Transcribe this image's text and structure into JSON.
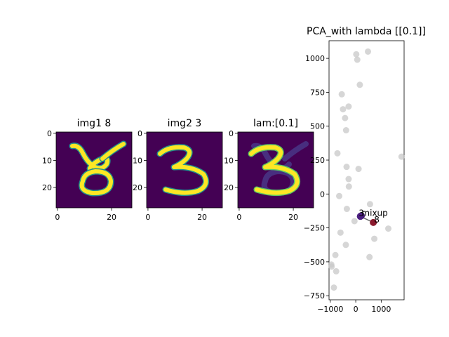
{
  "panels": [
    {
      "title": "img1 8",
      "x_ticks": [
        0,
        20
      ],
      "y_ticks": [
        0,
        10,
        20
      ],
      "colormap": [
        "#440154",
        "#3b528b",
        "#21918c",
        "#5ec962",
        "#fde725"
      ]
    },
    {
      "title": "img2 3",
      "x_ticks": [
        0,
        20
      ],
      "y_ticks": [
        0,
        10,
        20
      ],
      "colormap": [
        "#440154",
        "#3b528b",
        "#21918c",
        "#5ec962",
        "#fde725"
      ]
    },
    {
      "title": "lam:[0.1]",
      "x_ticks": [
        0,
        20
      ],
      "y_ticks": [
        0,
        10,
        20
      ],
      "colormap": [
        "#440154",
        "#3b528b",
        "#21918c",
        "#5ec962",
        "#fde725"
      ]
    }
  ],
  "chart_data": {
    "type": "scatter",
    "title": "PCA_with lambda [[0.1]]",
    "xlabel": "",
    "ylabel": "",
    "xlim": [
      -1050,
      1900
    ],
    "ylim": [
      -780,
      1130
    ],
    "x_ticks": [
      -1000,
      0,
      1000
    ],
    "x_tick_labels": [
      "−1000",
      "0",
      "1000"
    ],
    "y_ticks": [
      -750,
      -500,
      -250,
      0,
      250,
      500,
      750,
      1000
    ],
    "y_tick_labels": [
      "−750",
      "−500",
      "−250",
      "0",
      "250",
      "500",
      "750",
      "1000"
    ],
    "grid": false,
    "background": {
      "color": "#c8c8c8",
      "points": [
        [
          20,
          1030
        ],
        [
          480,
          1050
        ],
        [
          60,
          990
        ],
        [
          160,
          805
        ],
        [
          -550,
          735
        ],
        [
          -280,
          645
        ],
        [
          -500,
          625
        ],
        [
          -420,
          560
        ],
        [
          -380,
          470
        ],
        [
          -720,
          300
        ],
        [
          1800,
          275
        ],
        [
          -360,
          200
        ],
        [
          110,
          185
        ],
        [
          -280,
          110
        ],
        [
          -270,
          55
        ],
        [
          -650,
          -15
        ],
        [
          560,
          -75
        ],
        [
          -350,
          -110
        ],
        [
          -50,
          -200
        ],
        [
          1280,
          -255
        ],
        [
          -600,
          -285
        ],
        [
          730,
          -330
        ],
        [
          -390,
          -375
        ],
        [
          540,
          -465
        ],
        [
          -800,
          -450
        ],
        [
          -960,
          -520
        ],
        [
          -950,
          -535
        ],
        [
          -770,
          -570
        ],
        [
          -860,
          -690
        ]
      ]
    },
    "highlights": [
      {
        "name": "mixup",
        "x": 220,
        "y": -160,
        "color": "#3c1a66"
      },
      {
        "name": "img1",
        "x": 180,
        "y": -165,
        "color": "#4b1f80"
      },
      {
        "name": "img2",
        "x": 690,
        "y": -210,
        "color": "#8b1a2e"
      }
    ],
    "annotations": [
      {
        "text": "3",
        "x": 120,
        "y": -150
      },
      {
        "text": "mixup",
        "x": 230,
        "y": -150
      },
      {
        "text": "8",
        "x": 720,
        "y": -200
      }
    ]
  }
}
